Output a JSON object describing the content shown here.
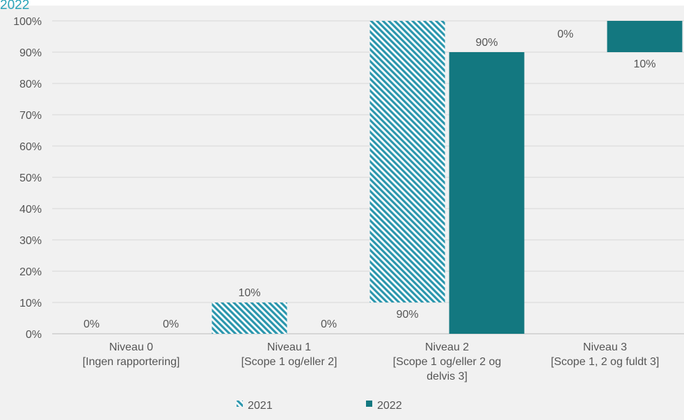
{
  "top_label": "2022",
  "chart_data": {
    "type": "bar",
    "stacked": true,
    "categories": [
      [
        "Niveau 0",
        "[Ingen rapportering]"
      ],
      [
        "Niveau 1",
        "[Scope 1 og/eller 2]"
      ],
      [
        "Niveau 2",
        "[Scope 1 og/eller 2 og",
        "delvis 3]"
      ],
      [
        "Niveau 3",
        "[Scope 1, 2 og fuldt 3]"
      ]
    ],
    "series": [
      {
        "name": "2021",
        "color": "#2a96ad",
        "pattern": "diagonal-stripes",
        "segments": [
          {
            "low": 0,
            "high": 0,
            "label": "0%"
          },
          {
            "low": 0,
            "high": 10,
            "label": "10%"
          },
          {
            "low": 10,
            "high": 100,
            "label": "90%"
          },
          {
            "low": 100,
            "high": 100,
            "label": "0%"
          }
        ]
      },
      {
        "name": "2022",
        "color": "#137880",
        "pattern": "solid",
        "segments": [
          {
            "low": 0,
            "high": 0,
            "label": "0%"
          },
          {
            "low": 0,
            "high": 0,
            "label": "0%"
          },
          {
            "low": 0,
            "high": 90,
            "label": "90%"
          },
          {
            "low": 90,
            "high": 100,
            "label": "10%"
          }
        ]
      }
    ],
    "y_ticks": [
      "0%",
      "10%",
      "20%",
      "30%",
      "40%",
      "50%",
      "60%",
      "70%",
      "80%",
      "90%",
      "100%"
    ],
    "ylim": [
      0,
      100
    ],
    "grid": true,
    "legend_position": "bottom"
  }
}
